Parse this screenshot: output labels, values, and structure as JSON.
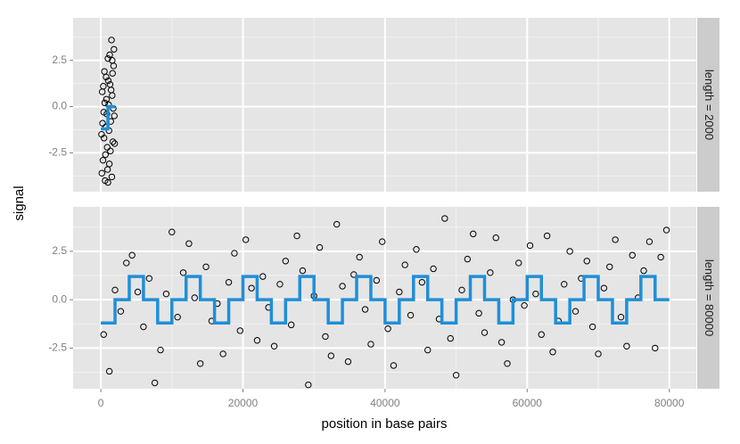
{
  "chart_data": {
    "type": "scatter",
    "xlabel": "position in base pairs",
    "ylabel": "signal",
    "xlim": [
      -3900,
      83800
    ],
    "ylim": [
      -4.6,
      4.8
    ],
    "xticks": [
      0,
      20000,
      40000,
      60000,
      80000
    ],
    "yticks": [
      -2.5,
      {
        "value": 0,
        "label": "0.0"
      },
      2.5
    ],
    "x_minor": [
      10000,
      30000,
      50000,
      70000
    ],
    "y_minor": [
      -3.75,
      -1.25,
      1.25,
      3.75
    ],
    "grid": true,
    "point_color": "#000000",
    "panels": [
      {
        "label": "length = 2000",
        "x": [
          100,
          200,
          300,
          400,
          500,
          600,
          700,
          800,
          900,
          1000,
          1100,
          1200,
          1300,
          1400,
          1500,
          1600,
          1700,
          1800,
          1900,
          150,
          250,
          350,
          450,
          550,
          650,
          750,
          850,
          950,
          1050,
          1150,
          1250,
          1350,
          1450,
          1550,
          1650,
          1750,
          1850,
          1950,
          1000,
          1600
        ],
        "values": [
          -1.5,
          0.8,
          -2.9,
          -0.3,
          1.9,
          -4.0,
          -1.1,
          0.4,
          -2.2,
          2.6,
          0.1,
          -3.1,
          1.2,
          -0.8,
          3.6,
          0.6,
          -1.9,
          2.2,
          -0.5,
          -3.6,
          -0.9,
          1.1,
          -1.7,
          0.2,
          -2.6,
          1.6,
          -0.4,
          -3.4,
          1.4,
          -1.3,
          2.8,
          -2.4,
          0.9,
          -3.8,
          1.8,
          -0.1,
          3.1,
          -2.0,
          -4.1,
          2.5
        ],
        "line": {
          "color": "#1f8fd8",
          "x": [
            0,
            1000,
            2000
          ],
          "values": [
            -1.2,
            0,
            0
          ]
        }
      },
      {
        "label": "length = 80000",
        "x": [
          400,
          1200,
          2000,
          2800,
          3600,
          4400,
          5200,
          6000,
          6800,
          7600,
          8400,
          9200,
          10000,
          10800,
          11600,
          12400,
          13200,
          14000,
          14800,
          15600,
          16400,
          17200,
          18000,
          18800,
          19600,
          20400,
          21200,
          22000,
          22800,
          23600,
          24400,
          25200,
          26000,
          26800,
          27600,
          28400,
          29200,
          30000,
          30800,
          31600,
          32400,
          33200,
          34000,
          34800,
          35600,
          36400,
          37200,
          38000,
          38800,
          39600,
          40400,
          41200,
          42000,
          42800,
          43600,
          44400,
          45200,
          46000,
          46800,
          47600,
          48400,
          49200,
          50000,
          50800,
          51600,
          52400,
          53200,
          54000,
          54800,
          55600,
          56400,
          57200,
          58000,
          58800,
          59600,
          60400,
          61200,
          62000,
          62800,
          63600,
          64400,
          65200,
          66000,
          66800,
          67600,
          68400,
          69200,
          70000,
          70800,
          71600,
          72400,
          73200,
          74000,
          74800,
          75600,
          76400,
          77200,
          78000,
          78800,
          79600
        ],
        "values": [
          -1.8,
          -3.7,
          0.5,
          -0.6,
          1.9,
          2.3,
          0.4,
          -1.4,
          1.1,
          -4.3,
          -2.6,
          0.3,
          3.5,
          -0.9,
          1.4,
          2.9,
          0.1,
          -3.3,
          1.7,
          -1.1,
          -0.2,
          -2.8,
          0.9,
          2.4,
          -1.6,
          3.1,
          0.6,
          -2.1,
          1.2,
          -0.4,
          -2.4,
          0.8,
          2.0,
          -1.3,
          3.3,
          1.5,
          -4.4,
          0.2,
          2.7,
          -1.9,
          -2.9,
          3.9,
          0.7,
          -3.2,
          1.3,
          2.2,
          -0.5,
          -2.3,
          1.0,
          3.0,
          -1.5,
          -3.4,
          0.4,
          1.8,
          -0.8,
          2.6,
          0.9,
          -2.6,
          1.6,
          -1.0,
          4.2,
          -2.0,
          -3.9,
          0.5,
          2.1,
          3.4,
          -0.7,
          -1.7,
          1.4,
          3.2,
          -2.2,
          -3.3,
          0.0,
          1.9,
          -0.3,
          2.8,
          0.3,
          -1.8,
          3.3,
          -2.7,
          -1.1,
          0.8,
          2.5,
          -0.6,
          1.1,
          2.0,
          -1.4,
          -2.8,
          0.6,
          1.7,
          3.1,
          -0.9,
          -2.4,
          2.3,
          0.1,
          1.5,
          3.0,
          -2.5,
          2.2,
          3.6
        ],
        "line": {
          "color": "#1f8fd8",
          "x": [
            0,
            2000,
            4000,
            6000,
            8000,
            10000,
            12000,
            14000,
            16000,
            18000,
            20000,
            22000,
            24000,
            26000,
            28000,
            30000,
            32000,
            34000,
            36000,
            38000,
            40000,
            42000,
            44000,
            46000,
            48000,
            50000,
            52000,
            54000,
            56000,
            58000,
            60000,
            62000,
            64000,
            66000,
            68000,
            70000,
            72000,
            74000,
            76000,
            78000,
            80000
          ],
          "values": [
            -1.2,
            0,
            1.2,
            0,
            -1.2,
            0,
            1.2,
            0,
            -1.2,
            0,
            1.2,
            0,
            -1.2,
            0,
            1.2,
            0,
            -1.2,
            0,
            1.2,
            0,
            -1.2,
            0,
            1.2,
            0,
            -1.2,
            0,
            1.2,
            0,
            -1.2,
            0,
            1.2,
            0,
            -1.2,
            0,
            1.2,
            0,
            -1.2,
            0,
            1.2,
            0,
            0
          ]
        }
      }
    ]
  }
}
